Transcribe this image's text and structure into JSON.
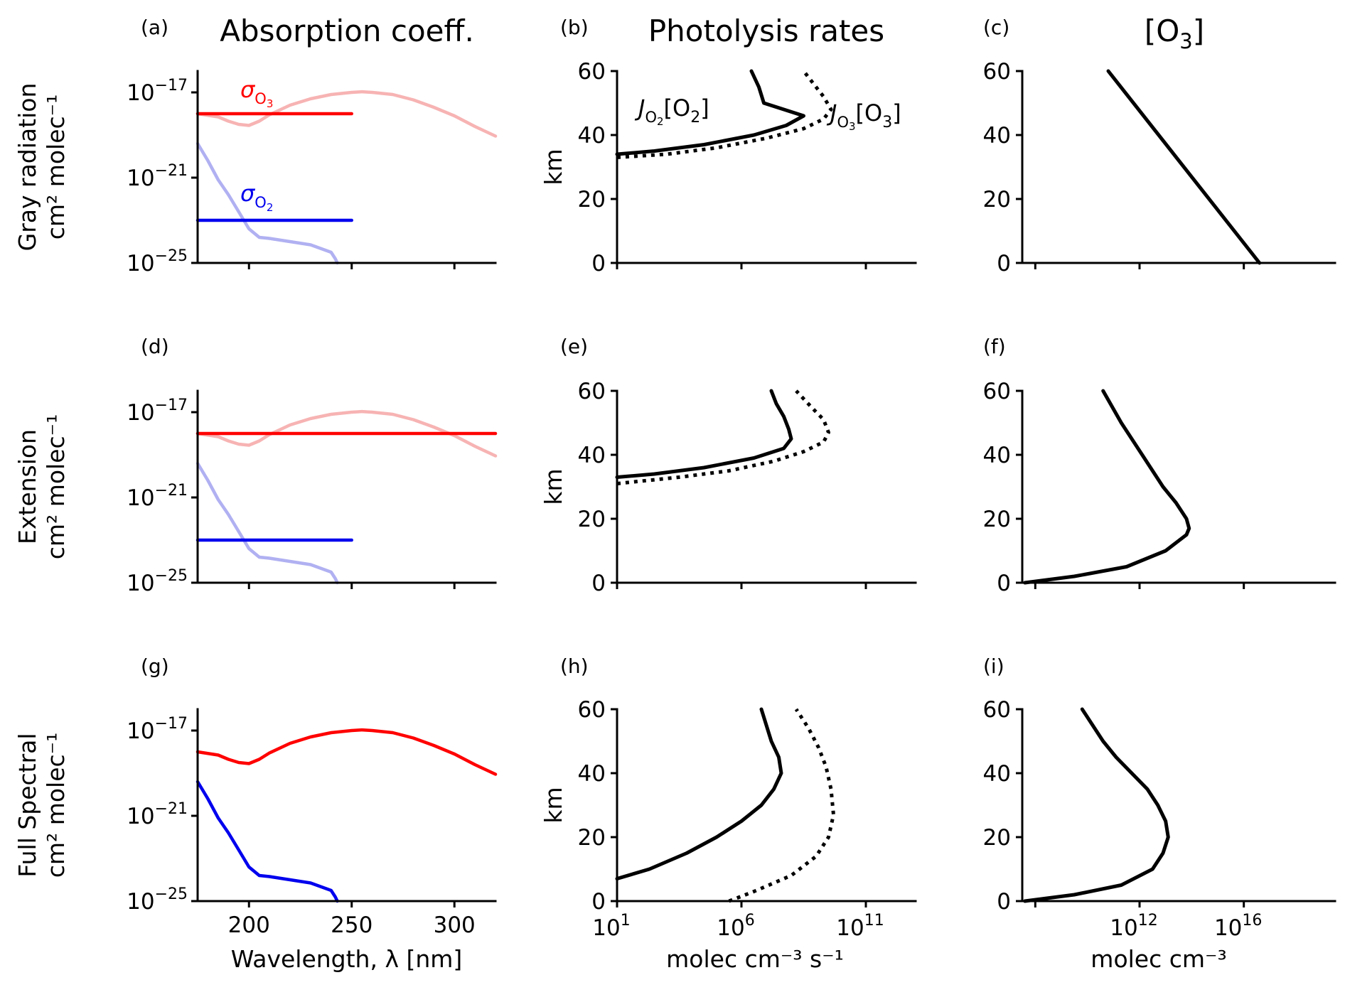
{
  "chart_data": {
    "type": "line",
    "layout": "3x3 panel grid",
    "column_titles": [
      "Absorption coeff.",
      "Photolysis rates",
      "[O3]"
    ],
    "row_labels": [
      "Gray radiation",
      "Extension",
      "Full Spectral"
    ],
    "shared_ylabel_col1": "cm² molec⁻¹",
    "shared_ylabel_col2": "km",
    "xlabels": [
      "Wavelength, λ [nm]",
      "molec cm⁻³ s⁻¹",
      "molec cm⁻³"
    ],
    "annotations": {
      "sigma_o3": "σ_O3",
      "sigma_o2": "σ_O2",
      "j_o2": "J_O2[O2]",
      "j_o3": "J_O3[O3]"
    },
    "colors": {
      "o3": "#ff0000",
      "o2": "#0000ee",
      "o3_faint": "#f7b3b3",
      "o2_faint": "#b0b0f2",
      "profile": "#000000"
    },
    "absorption_axes": {
      "xlim": [
        175,
        320
      ],
      "xticks": [
        200,
        250,
        300
      ],
      "ylim_log10": [
        -25,
        -16
      ],
      "yticks_log10": [
        -17,
        -21,
        -25
      ],
      "ytick_labels": [
        "10⁻¹⁷",
        "10⁻²¹",
        "10⁻²⁵"
      ]
    },
    "o3_spectrum": {
      "wavelength_nm": [
        175,
        185,
        190,
        195,
        200,
        205,
        210,
        220,
        230,
        240,
        250,
        255,
        260,
        270,
        280,
        290,
        300,
        310,
        320
      ],
      "log10_sigma": [
        -18.0,
        -18.15,
        -18.35,
        -18.5,
        -18.55,
        -18.35,
        -18.05,
        -17.6,
        -17.3,
        -17.1,
        -17.0,
        -16.97,
        -17.0,
        -17.1,
        -17.35,
        -17.7,
        -18.1,
        -18.6,
        -19.05
      ]
    },
    "o2_spectrum": {
      "wavelength_nm": [
        175,
        180,
        185,
        190,
        195,
        200,
        205,
        210,
        220,
        230,
        240,
        242,
        243
      ],
      "log10_sigma": [
        -19.4,
        -20.2,
        -21.1,
        -21.8,
        -22.6,
        -23.4,
        -23.8,
        -23.85,
        -24.0,
        -24.15,
        -24.5,
        -24.8,
        -25.0
      ]
    },
    "gray_sigma": {
      "o3_log10": -18.0,
      "o2_log10": -23.0,
      "row1_o3_wavelength_range": [
        175,
        250
      ],
      "row2_o3_wavelength_range": [
        175,
        320
      ],
      "o2_wavelength_range": [
        175,
        250
      ]
    },
    "photolysis_axes": {
      "xlim_log10": [
        1,
        13
      ],
      "xticks_log10": [
        1,
        6,
        11
      ],
      "xtick_labels": [
        "10¹",
        "10⁶",
        "10¹¹"
      ],
      "ylim_km": [
        0,
        60
      ],
      "yticks_km": [
        0,
        20,
        40,
        60
      ]
    },
    "o3_axes": {
      "xlim_log10": [
        7.5,
        19.5
      ],
      "xticks_log10": [
        8,
        12,
        16
      ],
      "xtick_labels": [
        "",
        "10¹²",
        "10¹⁶"
      ],
      "ylim_km": [
        0,
        60
      ],
      "yticks_km": [
        0,
        20,
        40,
        60
      ]
    },
    "panels": [
      {
        "tag": "(a)",
        "row": 0,
        "col": 0,
        "variant": "gray",
        "series": [
          "O3 cross-section (faint)",
          "O2 cross-section (faint)",
          "σ_O3 gray",
          "σ_O2 gray"
        ]
      },
      {
        "tag": "(b)",
        "row": 0,
        "col": 1,
        "series": [
          {
            "name": "J_O2[O2]",
            "style": "solid",
            "altitude_km": [
              34,
              35,
              37,
              40,
              43,
              46,
              50,
              55,
              60
            ],
            "log10_rate": [
              1.0,
              2.5,
              4.5,
              6.5,
              7.8,
              8.5,
              6.9,
              6.7,
              6.4
            ]
          },
          {
            "name": "J_O3[O3]",
            "style": "dotted",
            "altitude_km": [
              33,
              34,
              36,
              39,
              42,
              45,
              48,
              52,
              56,
              60
            ],
            "log10_rate": [
              1.0,
              3.0,
              5.0,
              7.0,
              8.5,
              9.3,
              9.6,
              9.3,
              8.9,
              8.5
            ]
          }
        ]
      },
      {
        "tag": "(c)",
        "row": 0,
        "col": 2,
        "series": [
          {
            "name": "[O3]",
            "altitude_km": [
              0,
              60
            ],
            "log10_conc": [
              16.6,
              10.8
            ]
          }
        ]
      },
      {
        "tag": "(d)",
        "row": 1,
        "col": 0,
        "variant": "extension",
        "series": [
          "O3 cross-section (faint)",
          "O2 cross-section (faint)",
          "σ_O3 gray",
          "σ_O2 gray"
        ]
      },
      {
        "tag": "(e)",
        "row": 1,
        "col": 1,
        "series": [
          {
            "name": "J_O2[O2]",
            "style": "solid",
            "altitude_km": [
              33,
              34,
              36,
              39,
              42,
              45,
              48,
              52,
              56,
              60
            ],
            "log10_rate": [
              1.0,
              2.5,
              4.5,
              6.5,
              7.7,
              8.0,
              7.9,
              7.7,
              7.4,
              7.2
            ]
          },
          {
            "name": "J_O3[O3]",
            "style": "dotted",
            "altitude_km": [
              31,
              33,
              35,
              38,
              41,
              44,
              47,
              51,
              55,
              60
            ],
            "log10_rate": [
              1.0,
              3.5,
              5.5,
              7.3,
              8.5,
              9.3,
              9.5,
              9.3,
              8.8,
              8.2
            ]
          }
        ]
      },
      {
        "tag": "(f)",
        "row": 1,
        "col": 2,
        "series": [
          {
            "name": "[O3]",
            "altitude_km": [
              0,
              2,
              5,
              10,
              15,
              17,
              20,
              25,
              30,
              40,
              50,
              60
            ],
            "log10_conc": [
              7.6,
              9.5,
              11.5,
              13.0,
              13.8,
              13.9,
              13.8,
              13.4,
              12.9,
              12.1,
              11.3,
              10.6
            ]
          }
        ]
      },
      {
        "tag": "(g)",
        "row": 2,
        "col": 0,
        "variant": "full",
        "series": [
          "O3 cross-section",
          "O2 cross-section"
        ]
      },
      {
        "tag": "(h)",
        "row": 2,
        "col": 1,
        "series": [
          {
            "name": "J_O2[O2]",
            "style": "solid",
            "altitude_km": [
              7,
              10,
              15,
              20,
              25,
              30,
              35,
              40,
              45,
              50,
              55,
              60
            ],
            "log10_rate": [
              1.0,
              2.3,
              3.8,
              5.0,
              6.0,
              6.8,
              7.3,
              7.6,
              7.5,
              7.2,
              7.0,
              6.8
            ]
          },
          {
            "name": "J_O3[O3]",
            "style": "dotted",
            "altitude_km": [
              0,
              3,
              8,
              14,
              20,
              27,
              35,
              42,
              48,
              54,
              60
            ],
            "log10_rate": [
              5.5,
              6.5,
              8.0,
              9.0,
              9.5,
              9.7,
              9.6,
              9.4,
              9.1,
              8.7,
              8.2
            ]
          }
        ]
      },
      {
        "tag": "(i)",
        "row": 2,
        "col": 2,
        "series": [
          {
            "name": "[O3]",
            "altitude_km": [
              0,
              2,
              5,
              10,
              15,
              20,
              25,
              30,
              35,
              40,
              45,
              50,
              55,
              60
            ],
            "log10_conc": [
              7.6,
              9.5,
              11.3,
              12.5,
              12.9,
              13.1,
              13.0,
              12.7,
              12.3,
              11.7,
              11.1,
              10.6,
              10.2,
              9.8
            ]
          }
        ]
      }
    ]
  }
}
